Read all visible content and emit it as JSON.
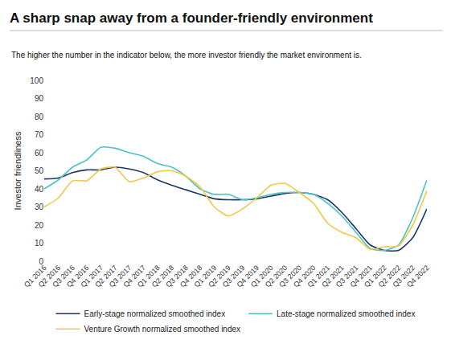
{
  "chart_data": {
    "type": "line",
    "title": "A sharp snap away from a founder-friendly environment",
    "subtitle": "The higher the number in the indicator below, the more investor friendly the market environment is.",
    "y_label": "Investor friendliness",
    "categories": [
      "Q1 2016",
      "Q2 2016",
      "Q3 2016",
      "Q4 2016",
      "Q1 2017",
      "Q2 2017",
      "Q3 2017",
      "Q4 2017",
      "Q1 2018",
      "Q2 2018",
      "Q3 2018",
      "Q4 2018",
      "Q1 2019",
      "Q2 2019",
      "Q3 2019",
      "Q4 2019",
      "Q1 2020",
      "Q2 2020",
      "Q3 2020",
      "Q4 2020",
      "Q1 2021",
      "Q2 2021",
      "Q3 2021",
      "Q4 2021",
      "Q1 2022",
      "Q2 2022",
      "Q3 2022",
      "Q4 2022"
    ],
    "series": [
      {
        "name": "Early-stage normalized smoothed index",
        "color": "#1b3566",
        "values": [
          45.5,
          46,
          49,
          50.5,
          50.5,
          52,
          51,
          49,
          45,
          42,
          39.5,
          37,
          34.5,
          34,
          34,
          34.5,
          36,
          37.5,
          38,
          37,
          34,
          27,
          18,
          9,
          6,
          6,
          13,
          29
        ]
      },
      {
        "name": "Late-stage normalized smoothed index",
        "color": "#4fc1c8",
        "values": [
          40,
          45,
          52,
          56,
          63,
          62.5,
          60,
          58,
          54,
          52,
          47,
          40,
          37,
          37,
          34,
          35,
          37,
          38,
          38,
          37,
          32,
          25,
          16,
          7,
          6,
          9,
          24,
          45
        ]
      },
      {
        "name": "Venture Growth normalized smoothed index",
        "color": "#f0c84a",
        "values": [
          30,
          35,
          44.5,
          44.5,
          51,
          52,
          44,
          46,
          49.5,
          50,
          47,
          41,
          30,
          25,
          29,
          35,
          42,
          43,
          38,
          32,
          21,
          16,
          13,
          6.5,
          8,
          8.5,
          20,
          39
        ]
      }
    ],
    "ylim": [
      0,
      100
    ],
    "yticks": [
      0,
      10,
      20,
      30,
      40,
      50,
      60,
      70,
      80,
      90,
      100
    ],
    "grid": false,
    "legend": "bottom"
  }
}
